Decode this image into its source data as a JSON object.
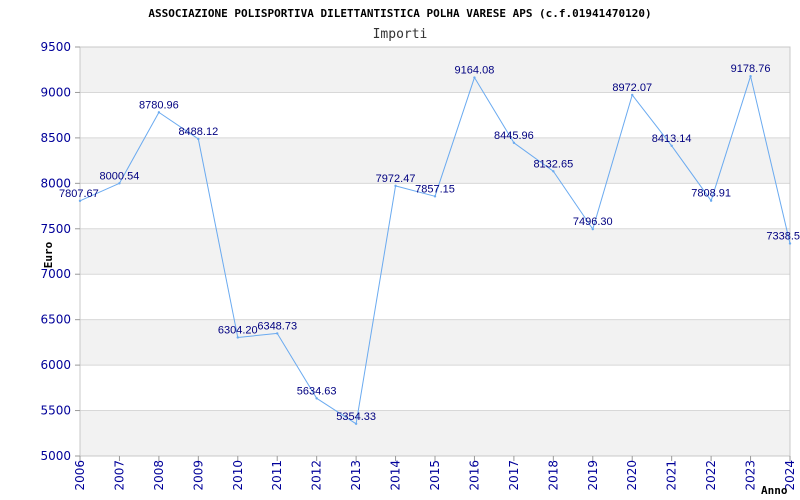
{
  "chart_data": {
    "type": "line",
    "title": "ASSOCIAZIONE POLISPORTIVA DILETTANTISTICA POLHA VARESE APS (c.f.01941470120)",
    "subtitle": "Importi",
    "xlabel": "Anno",
    "ylabel": "Euro",
    "ylim": [
      5000,
      9500
    ],
    "yticks": [
      "5000",
      "5500",
      "6000",
      "6500",
      "7000",
      "7500",
      "8000",
      "8500",
      "9000",
      "9500"
    ],
    "grid": true,
    "legend": "none",
    "categories": [
      "2006",
      "2007",
      "2008",
      "2009",
      "2010",
      "2011",
      "2012",
      "2013",
      "2014",
      "2015",
      "2016",
      "2017",
      "2018",
      "2019",
      "2020",
      "2021",
      "2022",
      "2023",
      "2024"
    ],
    "series": [
      {
        "name": "Importi",
        "values": [
          7807.67,
          8000.54,
          8780.96,
          8488.12,
          6304.2,
          6348.73,
          5634.63,
          5354.33,
          7972.47,
          7857.15,
          9164.08,
          8445.96,
          8132.65,
          7496.3,
          8972.07,
          8413.14,
          7808.91,
          9178.76,
          7338.5
        ],
        "labels": [
          "7807.67",
          "8000.54",
          "8780.96",
          "8488.12",
          "6304.20",
          "6348.73",
          "5634.63",
          "5354.33",
          "7972.47",
          "7857.15",
          "9164.08",
          "8445.96",
          "8132.65",
          "7496.30",
          "8972.07",
          "8413.14",
          "7808.91",
          "9178.76",
          "7338.5"
        ]
      }
    ],
    "colors": {
      "line": "#6aaaf0",
      "band": "#f2f2f2",
      "grid": "#d8d8d8",
      "tick": "#000099",
      "label": "#000080"
    }
  }
}
